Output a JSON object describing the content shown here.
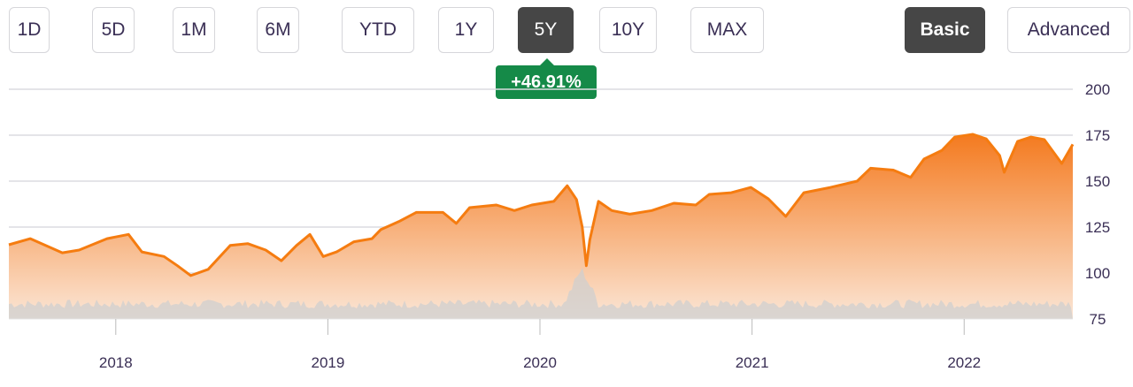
{
  "range_buttons": [
    {
      "label": "1D",
      "active": false
    },
    {
      "label": "5D",
      "active": false
    },
    {
      "label": "1M",
      "active": false
    },
    {
      "label": "6M",
      "active": false
    },
    {
      "label": "YTD",
      "active": false
    },
    {
      "label": "1Y",
      "active": false
    },
    {
      "label": "5Y",
      "active": true
    },
    {
      "label": "10Y",
      "active": false
    },
    {
      "label": "MAX",
      "active": false
    }
  ],
  "mode_buttons": [
    {
      "label": "Basic",
      "active": true
    },
    {
      "label": "Advanced",
      "active": false
    }
  ],
  "change_badge": {
    "text": "+46.91%",
    "color": "#158a48"
  },
  "chart_data": {
    "type": "area",
    "title": "",
    "xlabel": "",
    "ylabel": "",
    "ylim": [
      75,
      200
    ],
    "yticks": [
      200,
      175,
      150,
      125,
      100,
      75
    ],
    "xticks": [
      "2018",
      "2019",
      "2020",
      "2021",
      "2022"
    ],
    "xlim": [
      "2017-07-01",
      "2022-07-07"
    ],
    "grid": true,
    "line_color": "#f57c10",
    "fill_color_top": "#f47a1f",
    "fill_color_bottom": "#fbe6d6",
    "volume_color": "#cfcfcf",
    "series": [
      {
        "points": [
          [
            "2017-07-01",
            115.4
          ],
          [
            "2017-08-07",
            118.7
          ],
          [
            "2017-10-01",
            111
          ],
          [
            "2017-10-30",
            112.5
          ],
          [
            "2017-12-17",
            118.7
          ],
          [
            "2018-01-23",
            121
          ],
          [
            "2018-02-15",
            111.5
          ],
          [
            "2018-03-25",
            109
          ],
          [
            "2018-04-17",
            104
          ],
          [
            "2018-05-10",
            98.6
          ],
          [
            "2018-06-09",
            102
          ],
          [
            "2018-07-17",
            115
          ],
          [
            "2018-08-16",
            116
          ],
          [
            "2018-09-16",
            112.5
          ],
          [
            "2018-10-13",
            106.7
          ],
          [
            "2018-11-08",
            115
          ],
          [
            "2018-12-01",
            121
          ],
          [
            "2018-12-24",
            109
          ],
          [
            "2019-01-16",
            111.5
          ],
          [
            "2019-02-15",
            117
          ],
          [
            "2019-03-18",
            118.7
          ],
          [
            "2019-04-02",
            123.6
          ],
          [
            "2019-05-03",
            128
          ],
          [
            "2019-06-02",
            133
          ],
          [
            "2019-07-18",
            133
          ],
          [
            "2019-08-10",
            127
          ],
          [
            "2019-09-02",
            135.6
          ],
          [
            "2019-10-18",
            137
          ],
          [
            "2019-11-18",
            134
          ],
          [
            "2019-12-18",
            137
          ],
          [
            "2020-01-25",
            139
          ],
          [
            "2020-02-17",
            147.5
          ],
          [
            "2020-03-04",
            140
          ],
          [
            "2020-03-14",
            125
          ],
          [
            "2020-03-21",
            104
          ],
          [
            "2020-03-27",
            118
          ],
          [
            "2020-04-11",
            139
          ],
          [
            "2020-05-04",
            134
          ],
          [
            "2020-06-04",
            132
          ],
          [
            "2020-07-12",
            134
          ],
          [
            "2020-08-19",
            138
          ],
          [
            "2020-09-26",
            137
          ],
          [
            "2020-10-19",
            142.8
          ],
          [
            "2020-11-26",
            143.7
          ],
          [
            "2020-12-30",
            146.6
          ],
          [
            "2021-01-29",
            140.4
          ],
          [
            "2021-02-28",
            130.8
          ],
          [
            "2021-03-31",
            143.7
          ],
          [
            "2021-05-16",
            146.6
          ],
          [
            "2021-07-01",
            150
          ],
          [
            "2021-07-24",
            157
          ],
          [
            "2021-09-01",
            156
          ],
          [
            "2021-10-01",
            152
          ],
          [
            "2021-10-24",
            162
          ],
          [
            "2021-11-24",
            166.8
          ],
          [
            "2021-12-16",
            174
          ],
          [
            "2022-01-16",
            175.5
          ],
          [
            "2022-02-08",
            173
          ],
          [
            "2022-03-03",
            164
          ],
          [
            "2022-03-11",
            154.8
          ],
          [
            "2022-04-03",
            171.6
          ],
          [
            "2022-04-26",
            174
          ],
          [
            "2022-05-19",
            172.6
          ],
          [
            "2022-06-18",
            159.6
          ],
          [
            "2022-07-07",
            170
          ]
        ]
      }
    ]
  }
}
